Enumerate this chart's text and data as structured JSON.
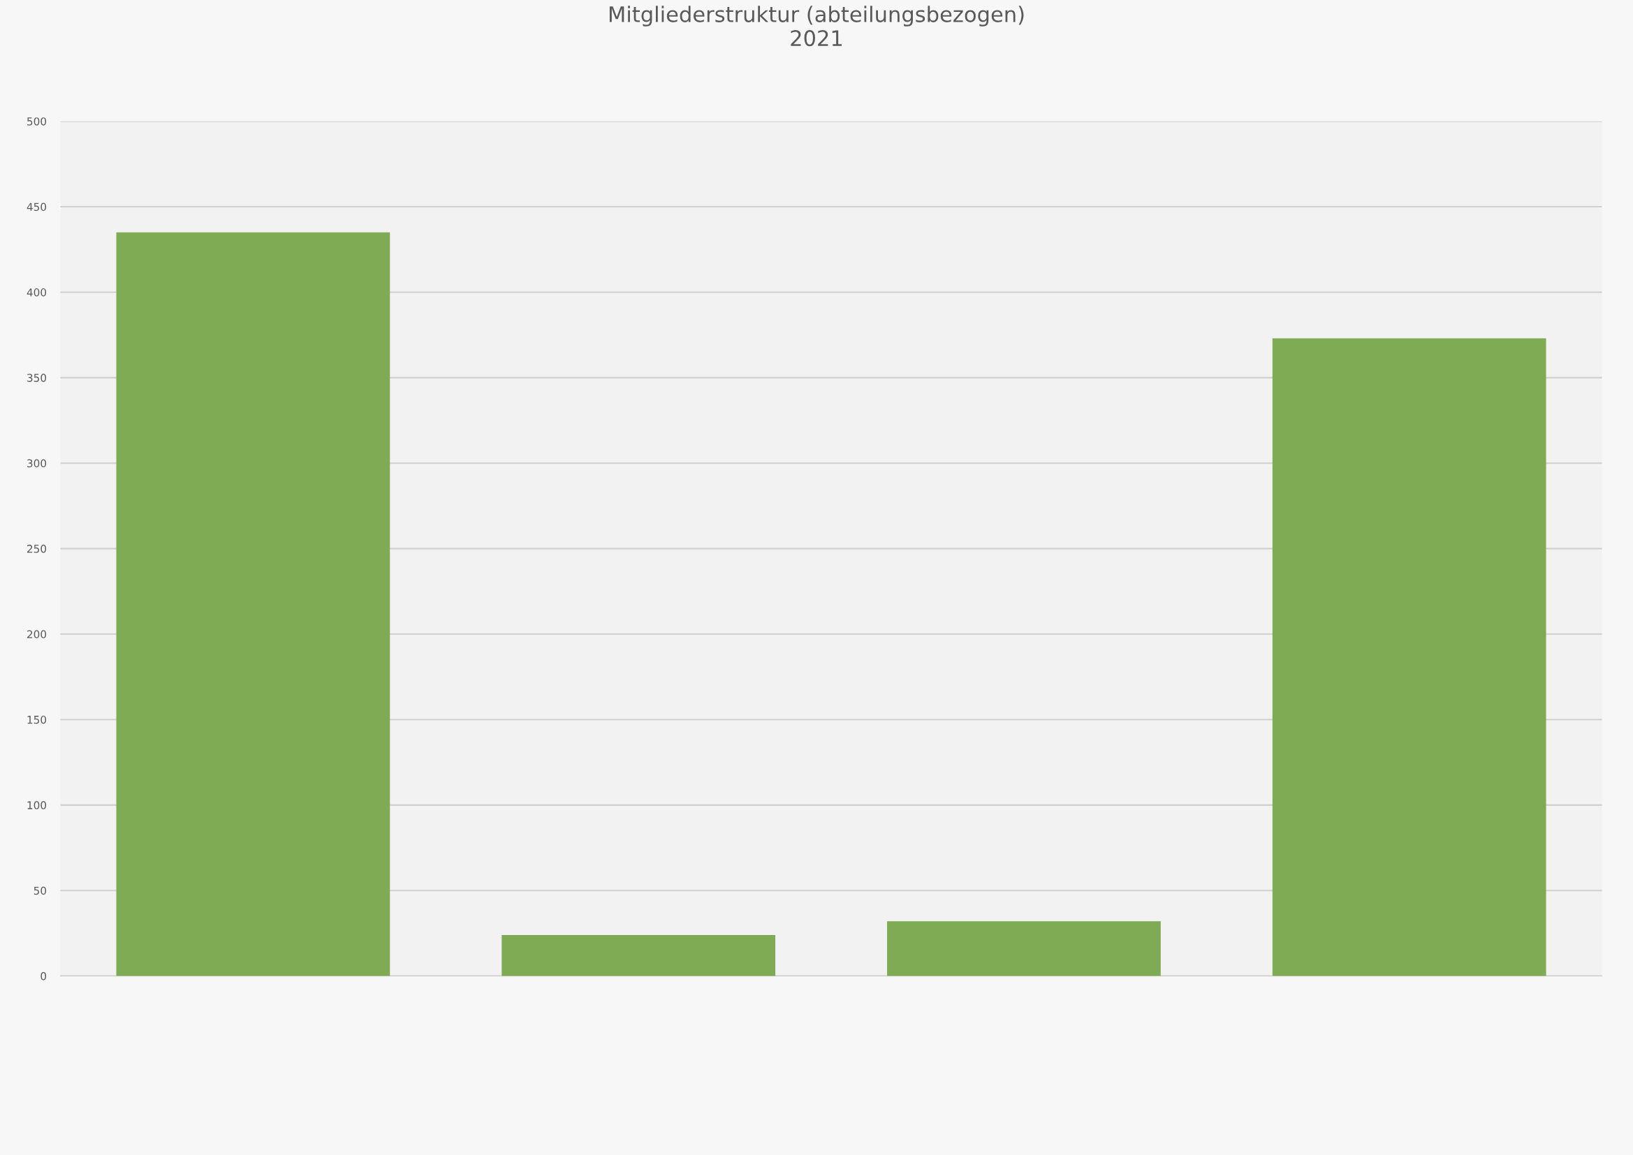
{
  "chart_data": {
    "type": "bar",
    "title": "Mitgliederstruktur (abteilungsbezogen)\n2021",
    "categories": [
      null,
      null,
      null,
      null
    ],
    "values": [
      435,
      24,
      32,
      373
    ],
    "color": "#7fab55",
    "ylim": [
      0,
      500
    ],
    "yticks": [
      0,
      50,
      100,
      150,
      200,
      250,
      300,
      350,
      400,
      450,
      500
    ],
    "grid": "y",
    "legend": false
  }
}
